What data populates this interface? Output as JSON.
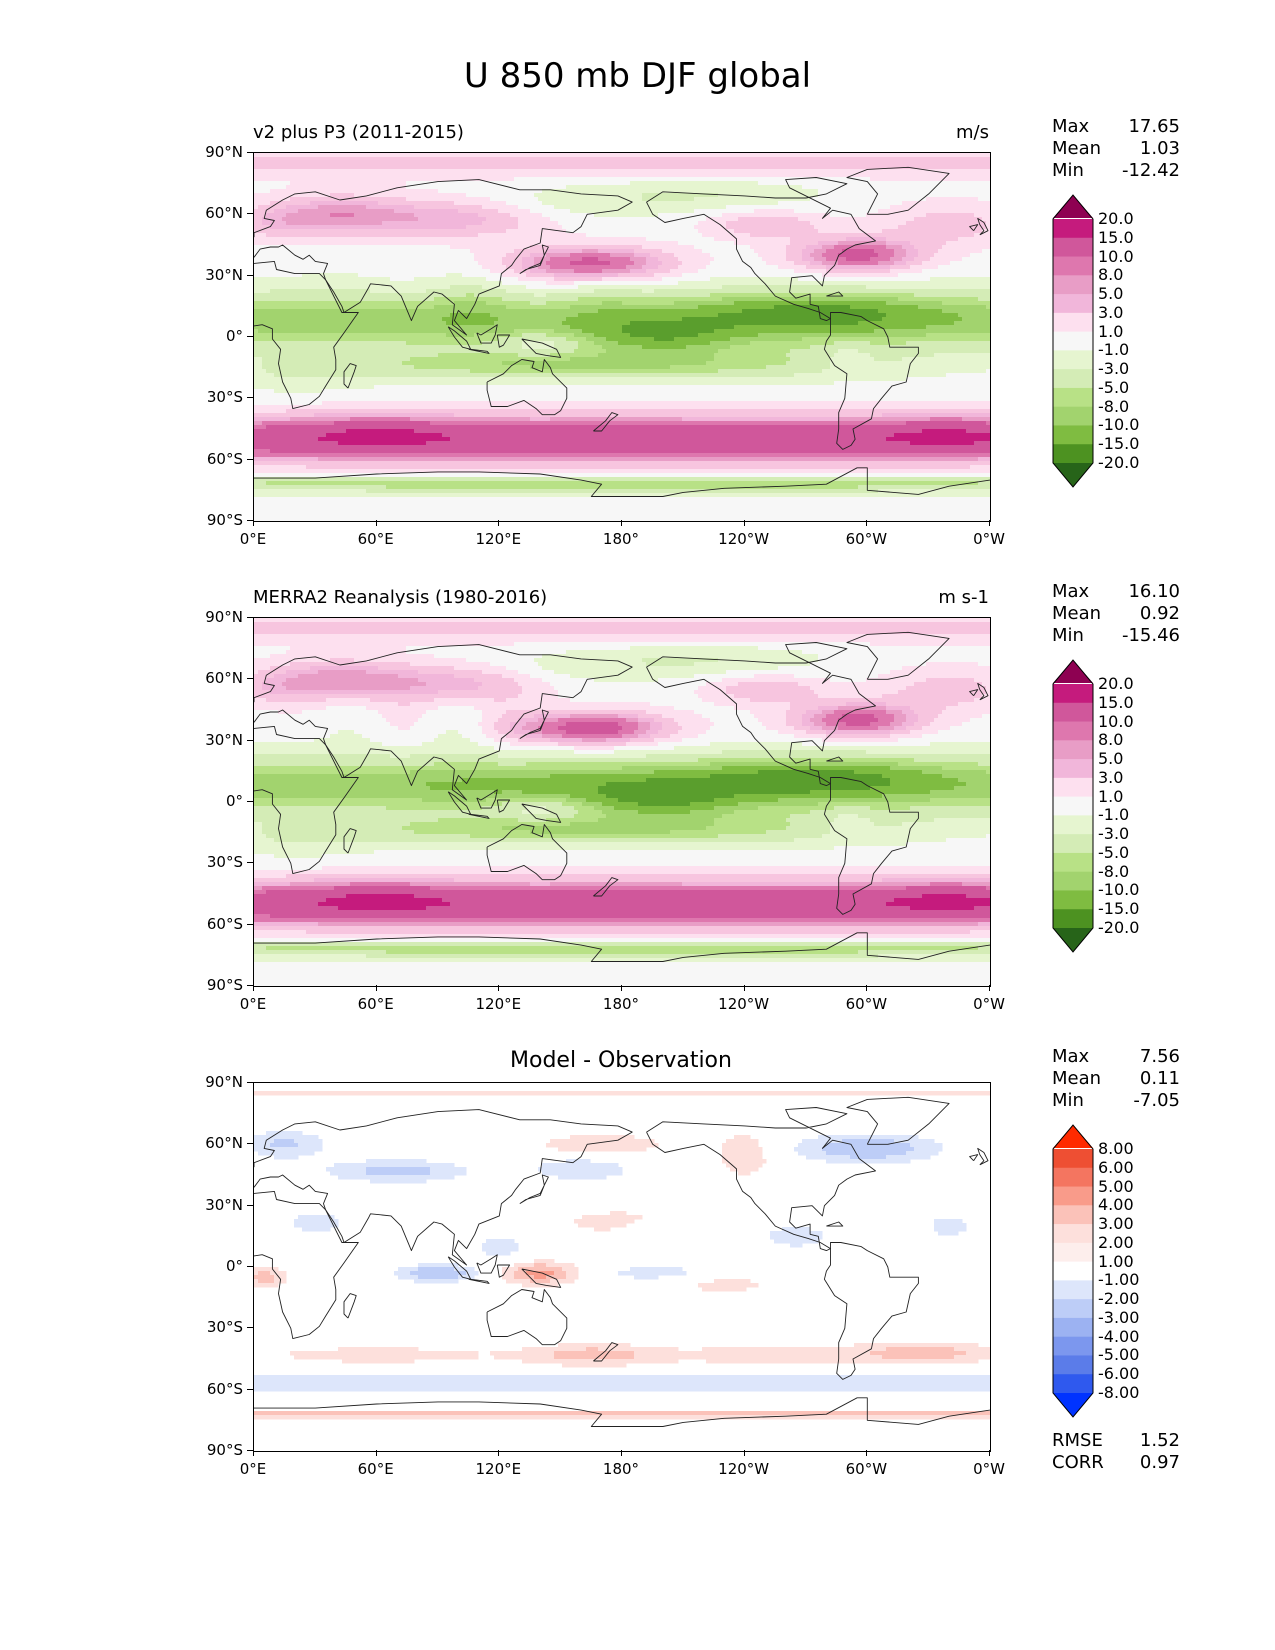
{
  "figure": {
    "title": "U 850 mb DJF global",
    "x_ticks": [
      "0°E",
      "60°E",
      "120°E",
      "180°",
      "120°W",
      "60°W",
      "0°W"
    ],
    "y_ticks": [
      "90°N",
      "60°N",
      "30°N",
      "0°",
      "30°S",
      "60°S",
      "90°S"
    ]
  },
  "colors": {
    "pos": [
      "#f7f7f7",
      "#fde0ef",
      "#f7c5df",
      "#f1b6da",
      "#e89dc6",
      "#de77ae",
      "#d0579b",
      "#c51b7d",
      "#8e0152"
    ],
    "neg": [
      "#f7f7f7",
      "#e6f5d0",
      "#d4ecb6",
      "#b8e186",
      "#a2d36e",
      "#7fbc41",
      "#5a9e2d",
      "#4d9221",
      "#276419"
    ],
    "diff_pos": [
      "#ffffff",
      "#fde0dc",
      "#fbc2b9",
      "#f99b8a",
      "#f47560",
      "#ee4f33",
      "#ff2a00"
    ],
    "diff_neg": [
      "#ffffff",
      "#dde6fb",
      "#bdcdf7",
      "#9cb2f2",
      "#7c97ee",
      "#5b7ce9",
      "#2f59ee",
      "#0033ff"
    ],
    "coast": "#222222"
  },
  "panels": [
    {
      "title": "v2 plus P3 (2011-2015)",
      "units": "m/s",
      "stats": [
        {
          "label": "Max",
          "value": "17.65"
        },
        {
          "label": "Mean",
          "value": "1.03"
        },
        {
          "label": "Min",
          "value": "-12.42"
        }
      ],
      "levels": [
        "20.0",
        "15.0",
        "10.0",
        "8.0",
        "5.0",
        "3.0",
        "1.0",
        "-1.0",
        "-3.0",
        "-5.0",
        "-8.0",
        "-10.0",
        "-15.0",
        "-20.0"
      ],
      "bar_colors": [
        "#8e0152",
        "#c51b7d",
        "#d0579b",
        "#de77ae",
        "#e89dc6",
        "#f1b6da",
        "#fde0ef",
        "#f7f7f7",
        "#e6f5d0",
        "#d4ecb6",
        "#b8e186",
        "#a2d36e",
        "#7fbc41",
        "#4d9221",
        "#276419"
      ]
    },
    {
      "title": "MERRA2 Reanalysis (1980-2016)",
      "units": "m s-1",
      "stats": [
        {
          "label": "Max",
          "value": "16.10"
        },
        {
          "label": "Mean",
          "value": "0.92"
        },
        {
          "label": "Min",
          "value": "-15.46"
        }
      ],
      "levels": [
        "20.0",
        "15.0",
        "10.0",
        "8.0",
        "5.0",
        "3.0",
        "1.0",
        "-1.0",
        "-3.0",
        "-5.0",
        "-8.0",
        "-10.0",
        "-15.0",
        "-20.0"
      ],
      "bar_colors": [
        "#8e0152",
        "#c51b7d",
        "#d0579b",
        "#de77ae",
        "#e89dc6",
        "#f1b6da",
        "#fde0ef",
        "#f7f7f7",
        "#e6f5d0",
        "#d4ecb6",
        "#b8e186",
        "#a2d36e",
        "#7fbc41",
        "#4d9221",
        "#276419"
      ]
    },
    {
      "title": "Model - Observation",
      "units": "",
      "stats": [
        {
          "label": "Max",
          "value": "7.56"
        },
        {
          "label": "Mean",
          "value": "0.11"
        },
        {
          "label": "Min",
          "value": "-7.05"
        }
      ],
      "extra_stats": [
        {
          "label": "RMSE",
          "value": "1.52"
        },
        {
          "label": "CORR",
          "value": "0.97"
        }
      ],
      "levels": [
        "8.00",
        "6.00",
        "5.00",
        "4.00",
        "3.00",
        "2.00",
        "1.00",
        "-1.00",
        "-2.00",
        "-3.00",
        "-4.00",
        "-5.00",
        "-6.00",
        "-8.00"
      ],
      "bar_colors": [
        "#ff2a00",
        "#ee4f33",
        "#f47560",
        "#f99b8a",
        "#fbc2b9",
        "#fde0dc",
        "#fdeeec",
        "#ffffff",
        "#dde6fb",
        "#bdcdf7",
        "#9cb2f2",
        "#7c97ee",
        "#5b7ce9",
        "#2f59ee",
        "#0033ff"
      ]
    }
  ]
}
